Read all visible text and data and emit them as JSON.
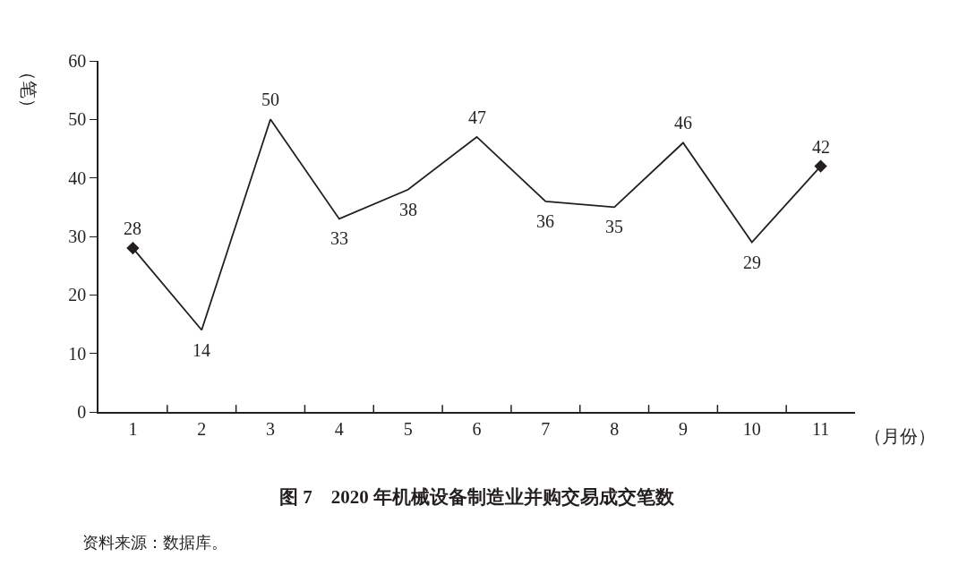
{
  "chart_data": {
    "type": "line",
    "title": "图 7　2020 年机械设备制造业并购交易成交笔数",
    "xlabel": "（月份）",
    "ylabel": "（笔）",
    "categories": [
      "1",
      "2",
      "3",
      "4",
      "5",
      "6",
      "7",
      "8",
      "9",
      "10",
      "11"
    ],
    "series": [
      {
        "color": "#231f20",
        "marker": "none",
        "values": [
          28,
          14,
          50,
          33,
          38,
          47,
          36,
          35,
          46,
          29,
          42
        ],
        "value_labels": [
          "28",
          "14",
          "50",
          "33",
          "38",
          "47",
          "36",
          "35",
          "46",
          "29",
          "42"
        ]
      },
      {
        "type": "scatter",
        "color": "#231f20",
        "marker": "diamond",
        "x": [
          "1",
          "11"
        ],
        "values": [
          28,
          42
        ]
      }
    ],
    "ylim": [
      0,
      60
    ],
    "yticks": [
      0,
      10,
      20,
      30,
      40,
      50,
      60
    ],
    "annotations": [
      "资料来源：数据库。"
    ]
  }
}
